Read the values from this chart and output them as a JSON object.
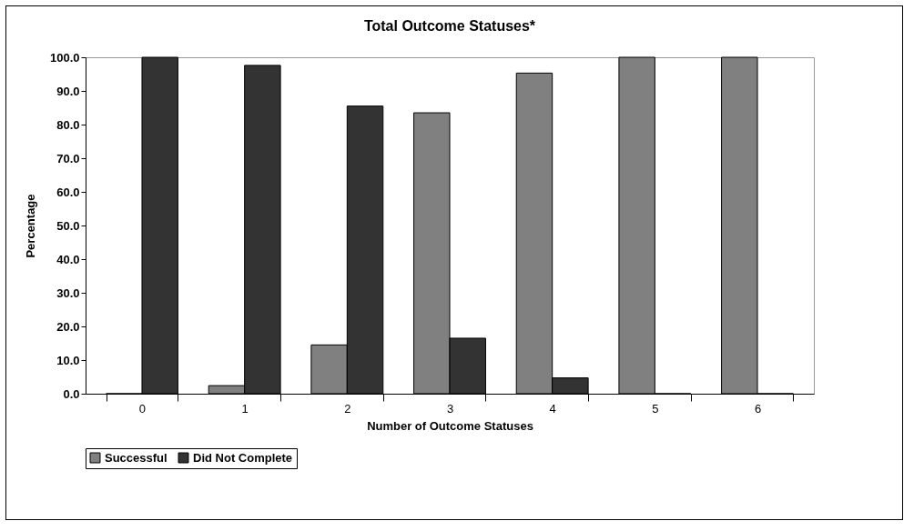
{
  "chart_data": {
    "type": "bar",
    "title": "Total Outcome Statuses*",
    "xlabel": "Number of Outcome Statuses",
    "ylabel": "Percentage",
    "categories": [
      "0",
      "1",
      "2",
      "3",
      "4",
      "5",
      "6"
    ],
    "series": [
      {
        "name": "Successful",
        "color": "#808080",
        "values": [
          0,
          2.4,
          14.5,
          83.5,
          95.3,
          100,
          100
        ]
      },
      {
        "name": "Did Not Complete",
        "color": "#333333",
        "values": [
          100,
          97.6,
          85.5,
          16.5,
          4.7,
          0,
          0
        ]
      }
    ],
    "ylim": [
      0,
      100
    ],
    "yticks": [
      {
        "value": 0,
        "label": "0.0"
      },
      {
        "value": 10,
        "label": "10.0"
      },
      {
        "value": 20,
        "label": "20.0"
      },
      {
        "value": 30,
        "label": "30.0"
      },
      {
        "value": 40,
        "label": "40.0"
      },
      {
        "value": 50,
        "label": "50.0"
      },
      {
        "value": 60,
        "label": "60.0"
      },
      {
        "value": 70,
        "label": "70.0"
      },
      {
        "value": 80,
        "label": "80.0"
      },
      {
        "value": 90,
        "label": "90.0"
      },
      {
        "value": 100,
        "label": "100.0"
      }
    ],
    "legend": "bottom"
  }
}
